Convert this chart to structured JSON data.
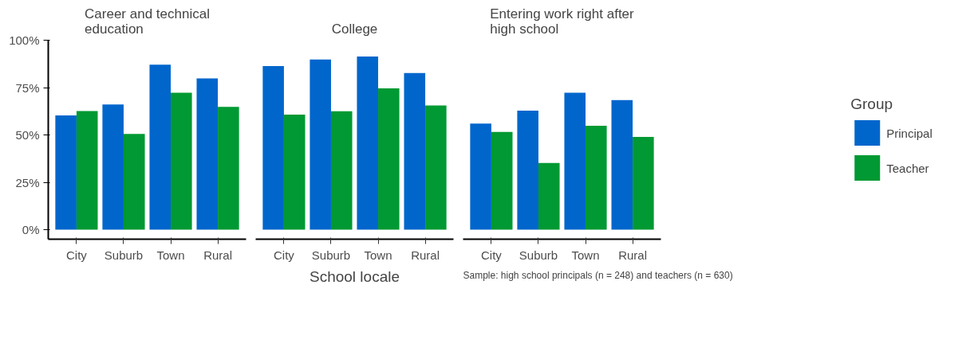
{
  "chart_data": [
    {
      "type": "bar",
      "title": "Career and technical education",
      "categories": [
        "City",
        "Suburb",
        "Town",
        "Rural"
      ],
      "series": [
        {
          "color": "#0066cc",
          "values": [
            60.3,
            66.1,
            87.1,
            79.8
          ]
        },
        {
          "color": "#009933",
          "values": [
            62.6,
            50.5,
            72.3,
            64.8
          ]
        }
      ],
      "ylim": [
        -5,
        100
      ],
      "yticks": [
        {
          "value": 0,
          "label": "0%"
        },
        {
          "value": 25,
          "label": "25%"
        },
        {
          "value": 50,
          "label": "50%"
        },
        {
          "value": 75,
          "label": "75%"
        },
        {
          "value": 100,
          "label": "100%"
        }
      ],
      "grid": false,
      "legend": false
    },
    {
      "type": "bar",
      "title": "College",
      "xlabel": "School locale",
      "categories": [
        "City",
        "Suburb",
        "Town",
        "Rural"
      ],
      "series": [
        {
          "color": "#0066cc",
          "values": [
            86.3,
            89.8,
            91.4,
            82.7
          ]
        },
        {
          "color": "#009933",
          "values": [
            60.7,
            62.5,
            74.6,
            65.6
          ]
        }
      ],
      "ylim": [
        -5,
        100
      ],
      "tick_labels": "x",
      "grid": false,
      "legend": false
    },
    {
      "type": "bar",
      "title": "Entering work right after high school",
      "categories": [
        "City",
        "Suburb",
        "Town",
        "Rural"
      ],
      "series": [
        {
          "name": "Principal",
          "color": "#0066cc",
          "values": [
            56.0,
            62.8,
            72.3,
            68.4
          ]
        },
        {
          "name": "Teacher",
          "color": "#009933",
          "values": [
            51.6,
            35.2,
            54.8,
            49.0
          ]
        }
      ],
      "ylim": [
        -5,
        100
      ],
      "tick_labels": "x",
      "grid": false,
      "legend": "right",
      "legend_title": "Group",
      "annotations": [
        "Sample: high school principals (n = 248) and teachers (n = 630)"
      ]
    }
  ]
}
